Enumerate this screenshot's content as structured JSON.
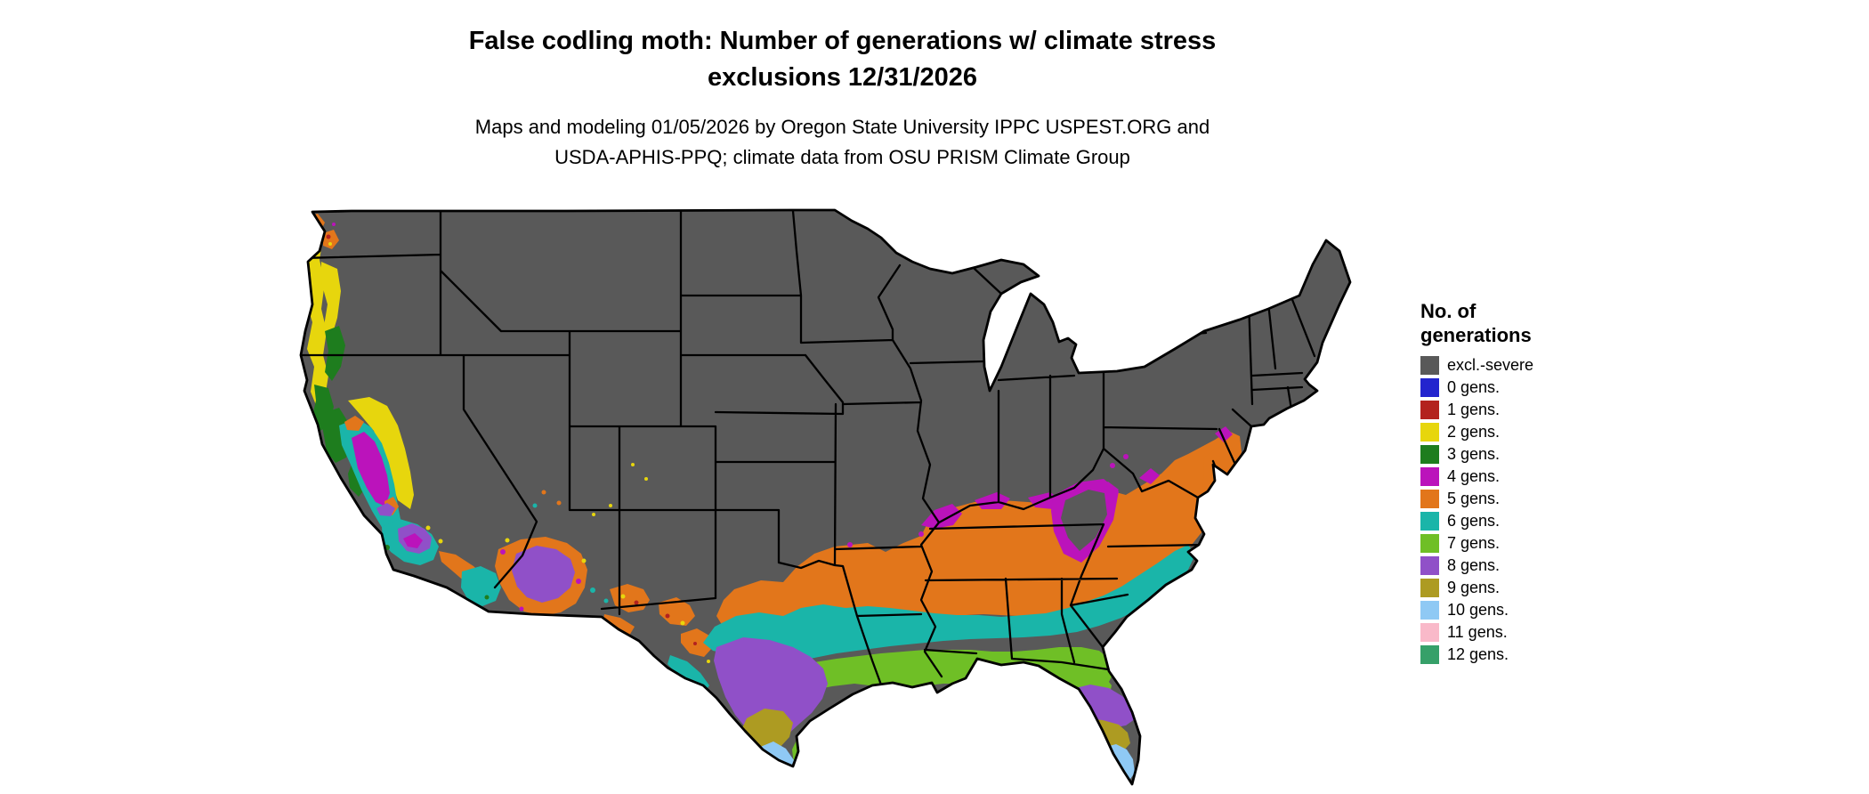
{
  "title": {
    "line1": "False codling moth: Number of generations w/ climate stress",
    "line2": "exclusions 12/31/2026"
  },
  "subtitle": {
    "line1": "Maps and modeling 01/05/2026 by Oregon State University IPPC USPEST.ORG and",
    "line2": "USDA-APHIS-PPQ; climate data from OSU PRISM Climate Group"
  },
  "legend": {
    "title_line1": "No. of",
    "title_line2": "generations",
    "items": [
      {
        "label": "excl.-severe",
        "key": "excl"
      },
      {
        "label": "0 gens.",
        "key": "g0"
      },
      {
        "label": "1 gens.",
        "key": "g1"
      },
      {
        "label": "2 gens.",
        "key": "g2"
      },
      {
        "label": "3 gens.",
        "key": "g3"
      },
      {
        "label": "4 gens.",
        "key": "g4"
      },
      {
        "label": "5 gens.",
        "key": "g5"
      },
      {
        "label": "6 gens.",
        "key": "g6"
      },
      {
        "label": "7 gens.",
        "key": "g7"
      },
      {
        "label": "8 gens.",
        "key": "g8"
      },
      {
        "label": "9 gens.",
        "key": "g9"
      },
      {
        "label": "10 gens.",
        "key": "g10"
      },
      {
        "label": "11 gens.",
        "key": "g11"
      },
      {
        "label": "12 gens.",
        "key": "g12"
      }
    ]
  },
  "map": {
    "region": "Continental United States",
    "palette": {
      "excl": "#595959",
      "g0": "#2324CE",
      "g1": "#B3221E",
      "g2": "#E7D60D",
      "g3": "#1E7D1E",
      "g4": "#BB13BB",
      "g5": "#E2761B",
      "g6": "#1AB5A9",
      "g7": "#6FBF26",
      "g8": "#9050C8",
      "g9": "#AD9B22",
      "g10": "#8FC9F4",
      "g11": "#F9B9C9",
      "g12": "#36A069"
    }
  }
}
